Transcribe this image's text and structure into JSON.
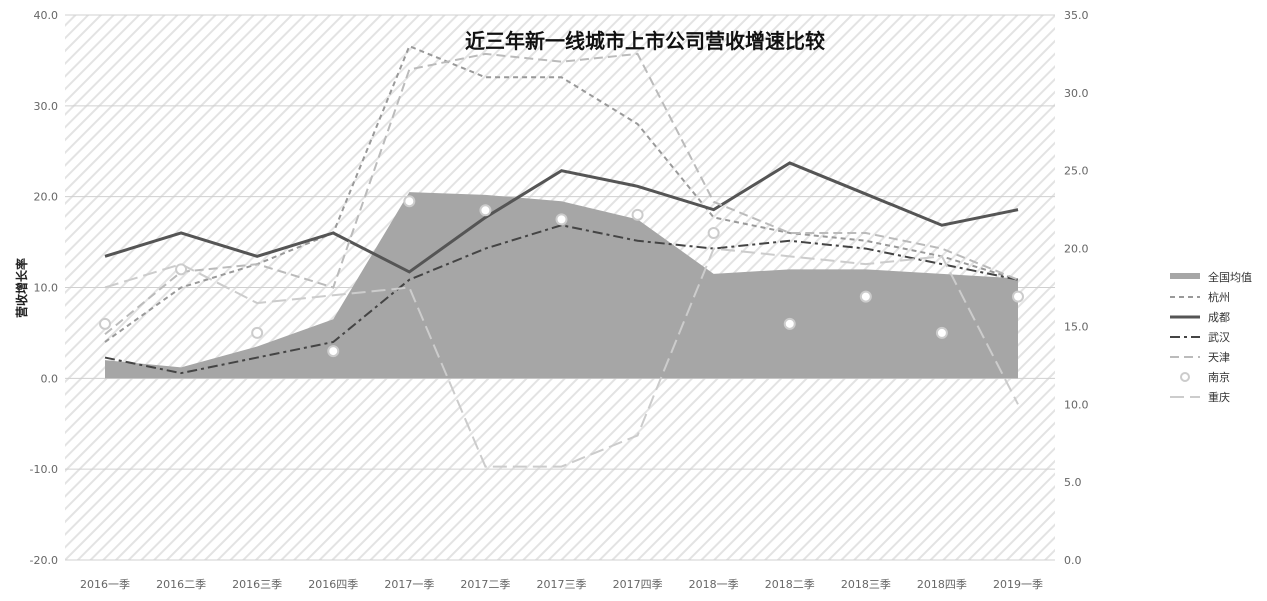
{
  "chart_data": {
    "type": "line",
    "title": "近三年新一线城市上市公司营收增速比较",
    "ylabel": "营收增长率",
    "xlabel": "",
    "categories": [
      "2016一季",
      "2016二季",
      "2016三季",
      "2016四季",
      "2017一季",
      "2017二季",
      "2017三季",
      "2017四季",
      "2018一季",
      "2018二季",
      "2018三季",
      "2018四季",
      "2019一季"
    ],
    "left_axis": {
      "ylim": [
        -20,
        40
      ],
      "ticks": [
        "-20.0",
        "-10.0",
        "0.0",
        "10.0",
        "20.0",
        "30.0",
        "40.0"
      ]
    },
    "right_axis": {
      "ylim": [
        0,
        35
      ],
      "ticks": [
        "0.0",
        "5.0",
        "10.0",
        "15.0",
        "20.0",
        "25.0",
        "30.0",
        "35.0"
      ]
    },
    "grid": "horizontal",
    "background": "diagonal-hatch",
    "legend_position": "right",
    "series": [
      {
        "name": "全国均值",
        "kind": "area",
        "axis": "left",
        "color": "#a6a6a6",
        "values": [
          2,
          1.2,
          3.5,
          6.5,
          20.5,
          20.2,
          19.5,
          17.5,
          11.5,
          12,
          12,
          11.5,
          11
        ]
      },
      {
        "name": "杭州",
        "kind": "line",
        "axis": "right",
        "color": "#999999",
        "style": "thin-dash",
        "values": [
          14,
          17.5,
          19,
          21,
          33,
          31,
          31,
          28,
          22,
          21,
          20.5,
          19.5,
          18
        ]
      },
      {
        "name": "成都",
        "kind": "line",
        "axis": "right",
        "color": "#555555",
        "style": "solid",
        "values": [
          19.5,
          21,
          19.5,
          21,
          18.5,
          22,
          25,
          24,
          22.5,
          25.5,
          23.5,
          21.5,
          22.5
        ]
      },
      {
        "name": "武汉",
        "kind": "line",
        "axis": "right",
        "color": "#444444",
        "style": "dash-dot",
        "values": [
          13,
          12,
          13,
          14,
          18,
          20,
          21.5,
          20.5,
          20,
          20.5,
          20,
          19,
          18
        ]
      },
      {
        "name": "天津",
        "kind": "line",
        "axis": "right",
        "color": "#bbbbbb",
        "style": "dash",
        "values": [
          14.5,
          18.5,
          19,
          17.5,
          31.5,
          32.5,
          32,
          32.5,
          23,
          21,
          21,
          20,
          18
        ]
      },
      {
        "name": "南京",
        "kind": "markers",
        "axis": "left",
        "color": "#cccccc",
        "symbol": "circle",
        "values": [
          6,
          12,
          5,
          3,
          19.5,
          18.5,
          17.5,
          18,
          16,
          6,
          9,
          5,
          9
        ]
      },
      {
        "name": "重庆",
        "kind": "line",
        "axis": "right",
        "color": "#cccccc",
        "style": "long-dash",
        "values": [
          17.5,
          19,
          16.5,
          17,
          17.5,
          6,
          6,
          8,
          20,
          19.5,
          19,
          19.5,
          10
        ]
      }
    ]
  }
}
